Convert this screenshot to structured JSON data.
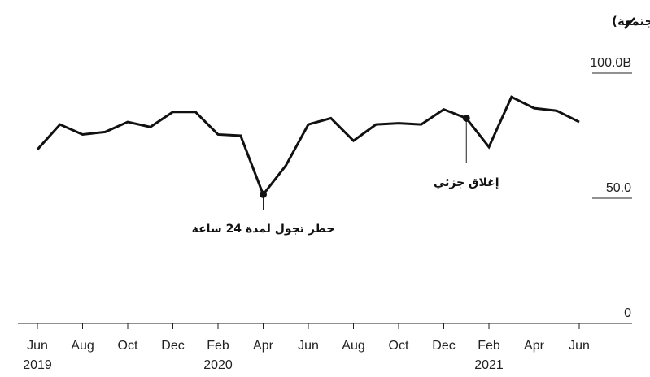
{
  "chart_data": {
    "type": "line",
    "title": "السحوبات النقدية ومعاملات نقاط البيع (مجتمعة)",
    "ylim": [
      0,
      100
    ],
    "yticks": [
      {
        "value": 100,
        "label": "100.0B"
      },
      {
        "value": 50,
        "label": "50.0"
      },
      {
        "value": 0,
        "label": "0"
      }
    ],
    "x": [
      "2019-06",
      "2019-07",
      "2019-08",
      "2019-09",
      "2019-10",
      "2019-11",
      "2019-12",
      "2020-01",
      "2020-02",
      "2020-03",
      "2020-04",
      "2020-05",
      "2020-06",
      "2020-07",
      "2020-08",
      "2020-09",
      "2020-10",
      "2020-11",
      "2020-12",
      "2021-01",
      "2021-02",
      "2021-03",
      "2021-04",
      "2021-05",
      "2021-06"
    ],
    "series": [
      {
        "values": [
          69.5,
          79.5,
          75.5,
          76.5,
          80.5,
          78.5,
          84.5,
          84.5,
          75.5,
          75,
          51.5,
          63,
          79.5,
          82,
          73,
          79.5,
          80,
          79.5,
          85.5,
          82,
          70.5,
          90.5,
          86,
          85,
          80.5
        ]
      }
    ],
    "xticks": [
      {
        "x": "2019-06",
        "label": "Jun"
      },
      {
        "x": "2019-08",
        "label": "Aug"
      },
      {
        "x": "2019-10",
        "label": "Oct"
      },
      {
        "x": "2019-12",
        "label": "Dec"
      },
      {
        "x": "2020-02",
        "label": "Feb"
      },
      {
        "x": "2020-04",
        "label": "Apr"
      },
      {
        "x": "2020-06",
        "label": "Jun"
      },
      {
        "x": "2020-08",
        "label": "Aug"
      },
      {
        "x": "2020-10",
        "label": "Oct"
      },
      {
        "x": "2020-12",
        "label": "Dec"
      },
      {
        "x": "2021-02",
        "label": "Feb"
      },
      {
        "x": "2021-04",
        "label": "Apr"
      },
      {
        "x": "2021-06",
        "label": "Jun"
      }
    ],
    "year_labels": [
      {
        "x": "2019-06",
        "label": "2019"
      },
      {
        "x": "2020-02",
        "label": "2020"
      },
      {
        "x": "2021-02",
        "label": "2021"
      }
    ],
    "annotations": [
      {
        "x": "2020-04",
        "text": "حظر تجول لمدة 24 ساعة"
      },
      {
        "x": "2021-01",
        "text": "إغلاق جزئي"
      }
    ],
    "grid": "horizontal"
  }
}
